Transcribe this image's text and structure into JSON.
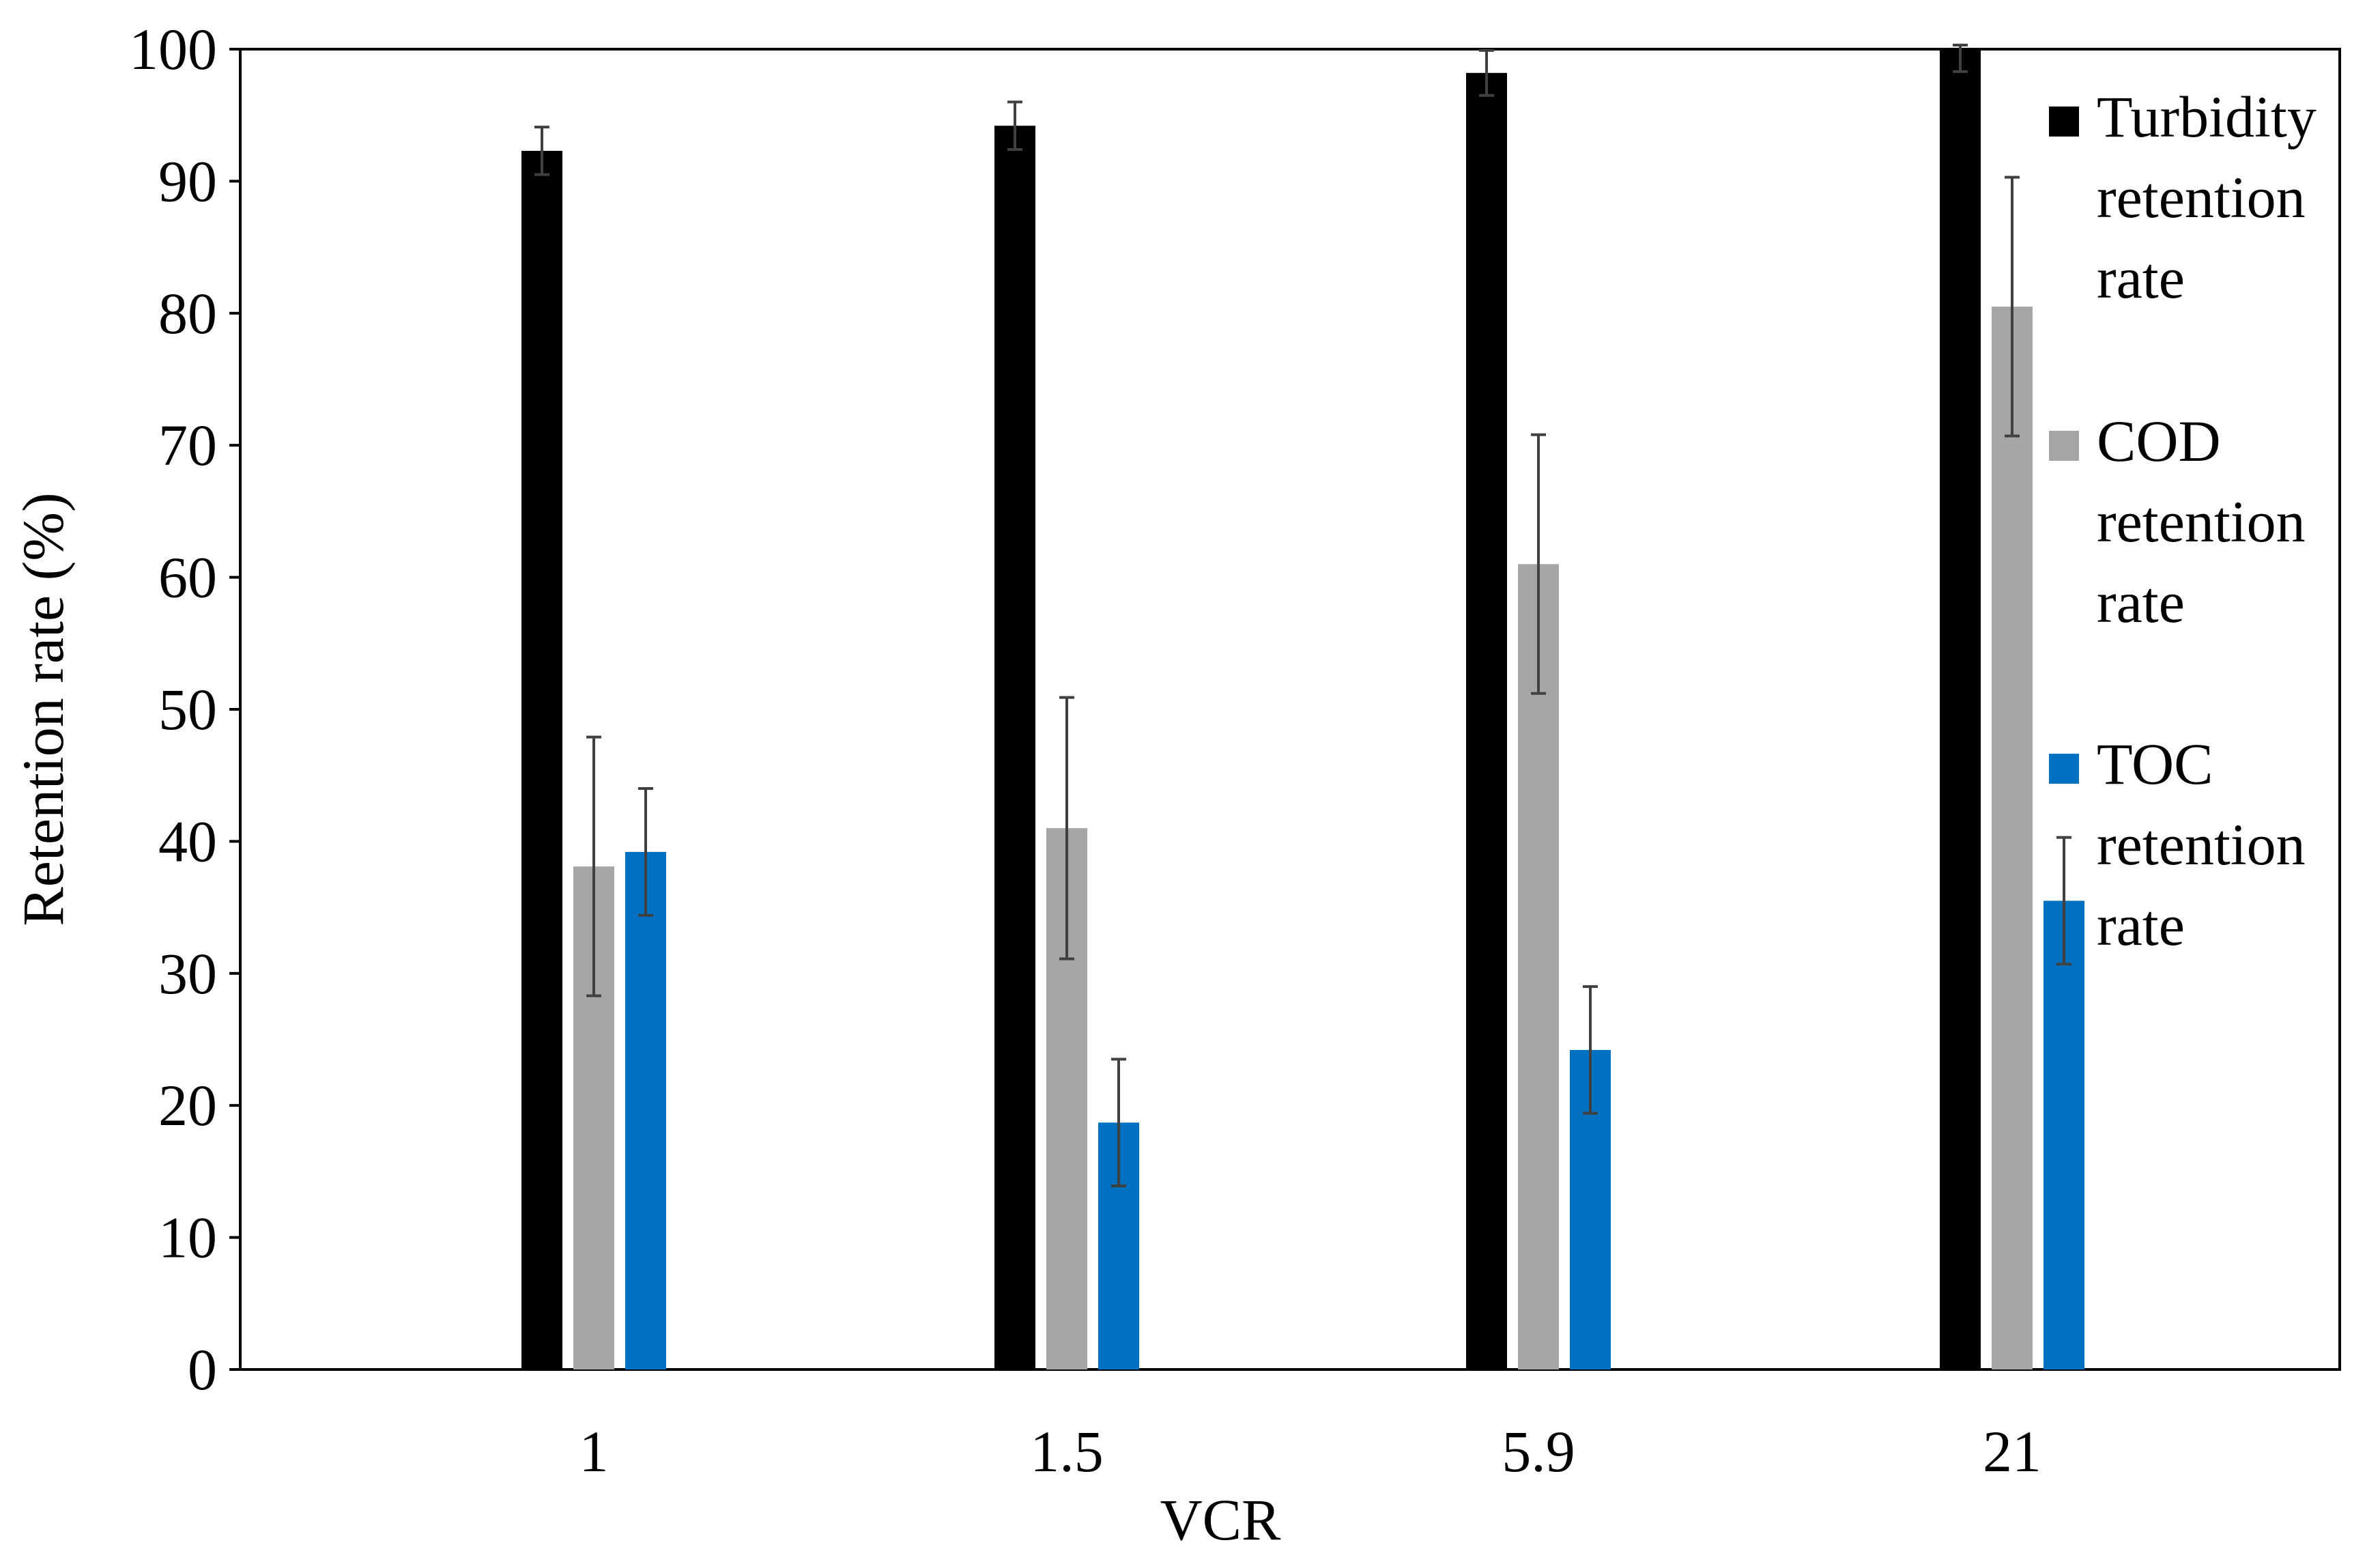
{
  "chart_data": {
    "type": "bar",
    "title": "",
    "xlabel": "VCR",
    "ylabel": "Retention rate (%)",
    "ylim": [
      0,
      100
    ],
    "yticks": [
      0,
      10,
      20,
      30,
      40,
      50,
      60,
      70,
      80,
      90,
      100
    ],
    "categories": [
      "1",
      "1.5",
      "5.9",
      "21"
    ],
    "grid": false,
    "legend_position": "right",
    "series": [
      {
        "name": "Turbidity retention rate",
        "legend_lines": [
          "Turbidity",
          "retention",
          "rate"
        ],
        "color": "#000000",
        "values": [
          92.3,
          94.2,
          98.2,
          100.0
        ],
        "error": [
          1.8,
          1.8,
          1.7,
          1.7
        ]
      },
      {
        "name": "COD retention rate",
        "legend_lines": [
          "COD",
          "retention",
          "rate"
        ],
        "color": "#a6a6a6",
        "values": [
          38.1,
          41.0,
          61.0,
          80.5
        ],
        "error": [
          9.8,
          9.9,
          9.8,
          9.8
        ]
      },
      {
        "name": "TOC retention rate",
        "legend_lines": [
          "TOC",
          "retention",
          "rate"
        ],
        "color": "#0070c0",
        "values": [
          39.2,
          18.7,
          24.2,
          35.5
        ],
        "error": [
          4.8,
          4.8,
          4.8,
          4.8
        ]
      }
    ]
  }
}
